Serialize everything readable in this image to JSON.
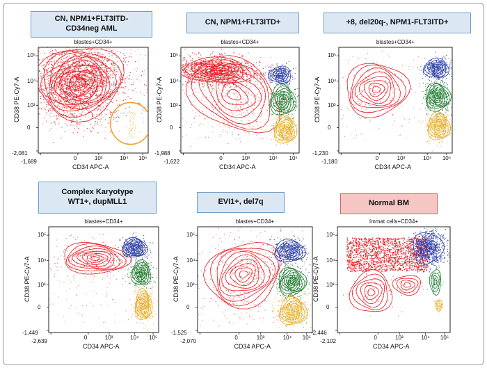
{
  "panels": [
    {
      "id": "p1",
      "title": "CN, NPM1+FLT3ITD-\nCD34neg AML",
      "gate_label": "blastes+CD34+",
      "x_axis_label": "CD34 APC-A",
      "y_axis_label": "CD38 PE-Cy7-A",
      "x_ticks": [
        "-1,689",
        "0",
        "10³",
        "10⁴",
        "10⁵"
      ],
      "y_ticks": [
        "10⁵",
        "10⁴",
        "10³",
        "0",
        "-2,081"
      ],
      "populations": [
        "red",
        "yellow"
      ],
      "annotation": "orange-circle"
    },
    {
      "id": "p2",
      "title": "CN, NPM1+FLT3ITD+",
      "gate_label": "blastes+CD34+",
      "x_axis_label": "CD34 APC-A",
      "y_axis_label": "CD38 PE-Cy7-A",
      "x_ticks": [
        "-1,622",
        "0",
        "10³",
        "10⁴",
        "10⁵"
      ],
      "y_ticks": [
        "10⁵",
        "10⁴",
        "10³",
        "0",
        "-1,988"
      ],
      "populations": [
        "red",
        "blue",
        "green",
        "yellow"
      ]
    },
    {
      "id": "p3",
      "title": "+8, del20q-, NPM1-FLT3ITD+",
      "gate_label": "blastes+CD34+",
      "x_axis_label": "CD34 APC-A",
      "y_axis_label": "CD38 PE-Cy7-A",
      "x_ticks": [
        "-1,180",
        "0",
        "10³",
        "10⁴",
        "10⁵"
      ],
      "y_ticks": [
        "10⁵",
        "10⁴",
        "10³",
        "0",
        "-1,230"
      ],
      "populations": [
        "red",
        "blue",
        "green",
        "yellow"
      ]
    },
    {
      "id": "p4",
      "title": "Complex Karyotype\nWT1+, dupMLL1",
      "gate_label": "blastes+CD34+",
      "x_axis_label": "CD34 APC-A",
      "y_axis_label": "CD38 PE-Cy7-A",
      "x_ticks": [
        "-2,639",
        "0",
        "10³",
        "10⁴",
        "10⁵"
      ],
      "y_ticks": [
        "10⁵",
        "10⁴",
        "10³",
        "0",
        "-1,449"
      ],
      "populations": [
        "red",
        "blue",
        "green",
        "yellow"
      ]
    },
    {
      "id": "p5",
      "title": "EVI1+, del7q",
      "gate_label": "blastes+CD34+",
      "x_axis_label": "CD34 APC-A",
      "y_axis_label": "CD38 PE-Cy7-A",
      "x_ticks": [
        "-2,070",
        "0",
        "10³",
        "10⁴",
        "10⁵"
      ],
      "y_ticks": [
        "10⁵",
        "10⁴",
        "10³",
        "0",
        "-1,525"
      ],
      "populations": [
        "red",
        "blue",
        "green",
        "yellow"
      ]
    },
    {
      "id": "p6",
      "title": "Normal BM",
      "gate_label": "Immat cells+CD34+",
      "x_axis_label": "CD34 APC-A",
      "y_axis_label": "CD38 PE-Cy7-A",
      "x_ticks": [
        "-2,102",
        "0",
        "10³",
        "10⁴",
        "10⁵"
      ],
      "y_ticks": [
        "10⁵",
        "10⁴",
        "10³",
        "0",
        "-2,446"
      ],
      "populations": [
        "red",
        "blue",
        "green",
        "yellow"
      ]
    }
  ],
  "colors": {
    "red": "#e8141c",
    "blue": "#2b3fa6",
    "green": "#1d7a2e",
    "yellow": "#e6a817",
    "orange_circle": "#f0a02a",
    "title_box": "#dbe8f4",
    "title_box_normal": "#f4c6c4"
  }
}
